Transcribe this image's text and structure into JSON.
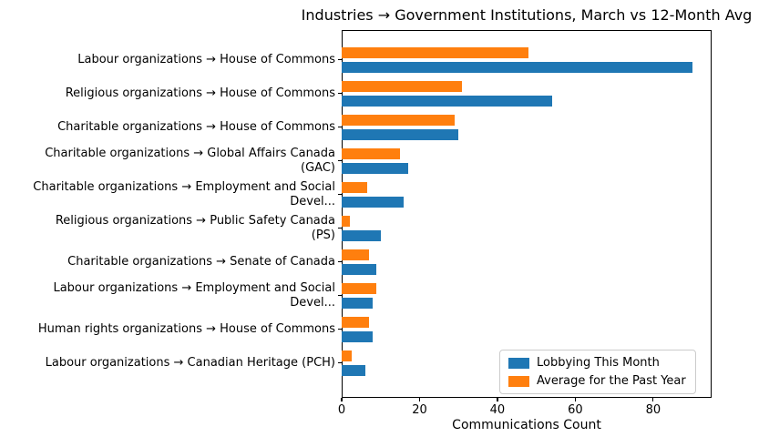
{
  "title": "Industries → Government Institutions, March vs 12-Month Avg",
  "chart_data": {
    "type": "bar",
    "orientation": "horizontal",
    "title": "Industries → Government Institutions, March vs 12-Month Avg",
    "xlabel": "Communications Count",
    "ylabel": "",
    "xlim": [
      0,
      95
    ],
    "xticks": [
      0,
      20,
      40,
      60,
      80
    ],
    "grid": false,
    "legend_position": "lower right",
    "categories": [
      "Labour organizations → House of Commons",
      "Religious organizations → House of Commons",
      "Charitable organizations → House of Commons",
      "Charitable organizations → Global Affairs Canada\n(GAC)",
      "Charitable organizations → Employment and Social\nDevel...",
      "Religious organizations → Public Safety Canada\n(PS)",
      "Charitable organizations → Senate of Canada",
      "Labour organizations → Employment and Social\nDevel...",
      "Human rights organizations → House of Commons",
      "Labour organizations → Canadian Heritage (PCH)"
    ],
    "series": [
      {
        "name": "Lobbying This Month",
        "color": "#1f77b4",
        "values": [
          90,
          54,
          30,
          17,
          16,
          10,
          9,
          8,
          8,
          6
        ]
      },
      {
        "name": "Average for the Past Year",
        "color": "#ff7f0e",
        "values": [
          48,
          31,
          29,
          15,
          6.5,
          2,
          7,
          9,
          7,
          2.5
        ]
      }
    ]
  }
}
